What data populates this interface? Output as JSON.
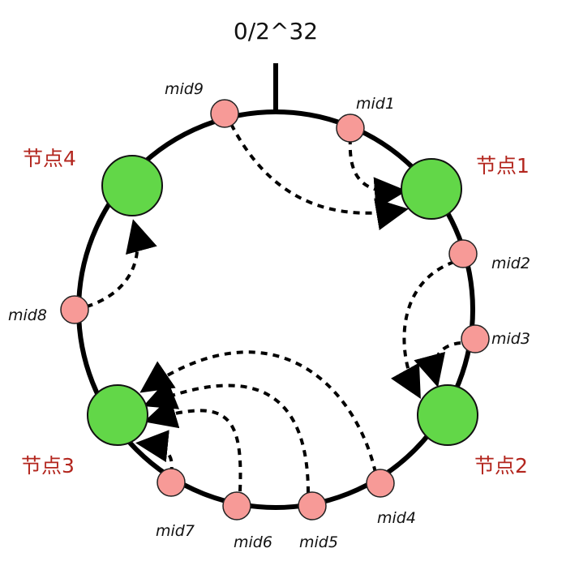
{
  "title": "0/2^32",
  "colors": {
    "node_fill": "#62d748",
    "mid_fill": "#f79a97",
    "node_label": "#b3261e"
  },
  "nodes": [
    {
      "label": "节点1"
    },
    {
      "label": "节点2"
    },
    {
      "label": "节点3"
    },
    {
      "label": "节点4"
    }
  ],
  "mids": [
    {
      "label": "mid1"
    },
    {
      "label": "mid2"
    },
    {
      "label": "mid3"
    },
    {
      "label": "mid4"
    },
    {
      "label": "mid5"
    },
    {
      "label": "mid6"
    },
    {
      "label": "mid7"
    },
    {
      "label": "mid8"
    },
    {
      "label": "mid9"
    }
  ]
}
